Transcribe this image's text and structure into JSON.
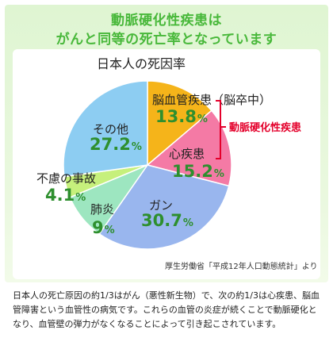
{
  "headline": {
    "line1": "動脈硬化性疾患は",
    "line2": "がんと同等の死亡率となっています"
  },
  "chart_data": {
    "type": "pie",
    "title": "日本人の死因率",
    "unit": "%",
    "categories": [
      "脳血管疾患（脳卒中）",
      "心疾患",
      "ガン",
      "肺炎",
      "不慮の事故",
      "その他"
    ],
    "values": [
      13.8,
      15.2,
      30.7,
      9,
      4.1,
      27.2
    ],
    "value_labels": [
      "13.8",
      "15.2",
      "30.7",
      "9",
      "4.1",
      "27.2"
    ],
    "colors": [
      "#f5b41a",
      "#f47aa5",
      "#99b6ee",
      "#9de6c0",
      "#c6f07c",
      "#8dcdf2"
    ],
    "annotation": "動脈硬化性疾患",
    "source": "厚生労働省「平成12年人口動態統計」より"
  },
  "body_text": "日本人の死亡原因の約1/3はがん（悪性新生物）で、次の約1/3は心疾患、脳血管障害という血管性の病気です。これらの血管の炎症が続くことで動脈硬化となり、血管壁の弾力がなくなることによって引き起こされています。"
}
